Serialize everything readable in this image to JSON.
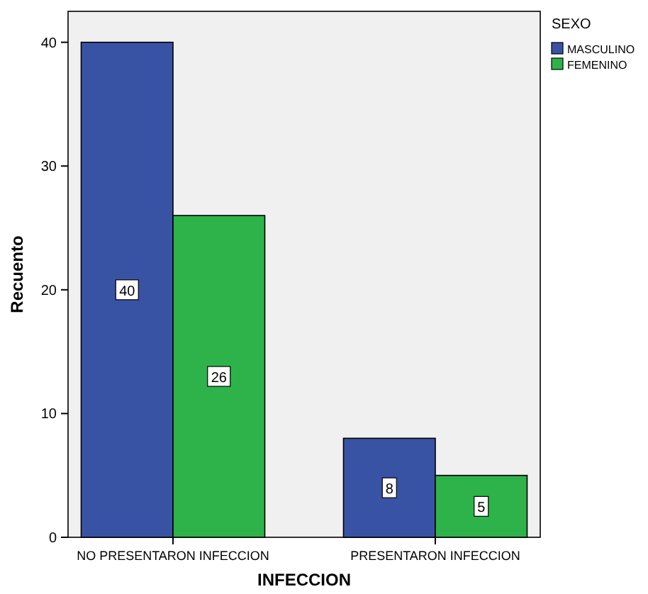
{
  "chart_data": {
    "type": "bar",
    "xlabel": "INFECCION",
    "ylabel": "Recuento",
    "legend_title": "SEXO",
    "categories": [
      "NO PRESENTARON INFECCION",
      "PRESENTARON INFECCION"
    ],
    "series": [
      {
        "name": "MASCULINO",
        "color": "#3953a4",
        "values": [
          40,
          8
        ]
      },
      {
        "name": "FEMENINO",
        "color": "#2db34a",
        "values": [
          26,
          5
        ]
      }
    ],
    "ylim": [
      0,
      42.5
    ],
    "yticks": [
      0,
      10,
      20,
      30,
      40
    ],
    "grid": false,
    "legend": "right",
    "data_labels": true
  }
}
